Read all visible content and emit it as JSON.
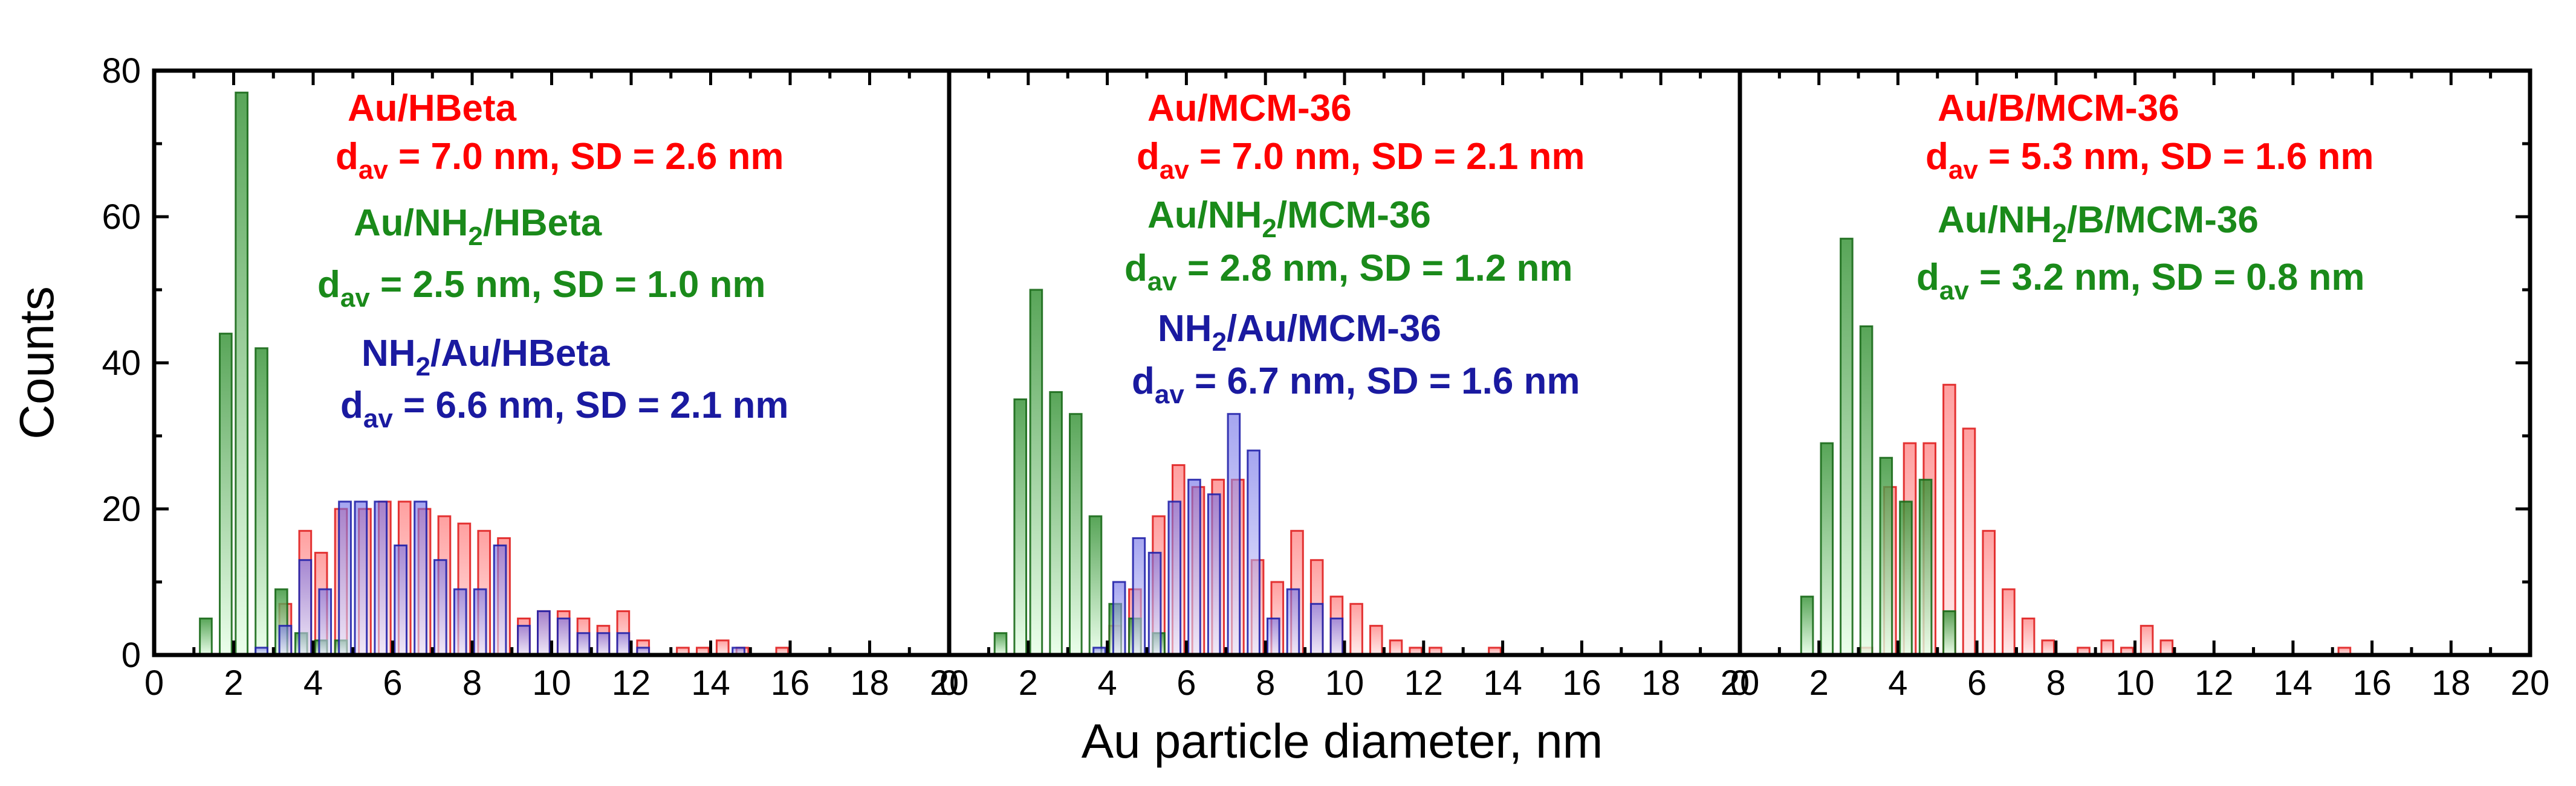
{
  "chart_data": {
    "type": "bar",
    "xlabel": "Au particle diameter, nm",
    "ylabel": "Counts",
    "xlim": [
      0,
      20
    ],
    "ylim": [
      0,
      80
    ],
    "x_ticks": [
      0,
      2,
      4,
      6,
      8,
      10,
      12,
      14,
      16,
      18,
      20
    ],
    "y_ticks": [
      0,
      20,
      40,
      60,
      80
    ],
    "bar_width": 0.3,
    "colors": {
      "red_fill": "#ff8080",
      "red_edge": "#e02020",
      "green_fill": "#2f8f2f",
      "green_edge": "#1a6a1a",
      "blue_fill": "#6a6ae6",
      "blue_edge": "#2222aa",
      "red_text": "#ff0000",
      "green_text": "#1a8a1a",
      "blue_text": "#1a1aa0"
    },
    "panels": [
      {
        "name": "panel-hbeta",
        "series": [
          {
            "color": "red",
            "x": [
              3.3,
              3.8,
              4.2,
              4.7,
              5.3,
              5.8,
              6.3,
              6.8,
              7.3,
              7.8,
              8.3,
              8.8,
              9.3,
              9.8,
              10.3,
              10.8,
              11.3,
              11.8,
              12.3,
              13.3,
              13.8,
              14.3,
              14.8,
              15.8
            ],
            "values": [
              7,
              17,
              14,
              20,
              20,
              21,
              21,
              20,
              19,
              18,
              17,
              16,
              5,
              6,
              6,
              5,
              4,
              6,
              2,
              1,
              1,
              2,
              1,
              1
            ]
          },
          {
            "color": "green",
            "x": [
              1.3,
              1.8,
              2.2,
              2.7,
              3.2,
              3.7,
              4.2,
              4.7
            ],
            "values": [
              5,
              44,
              77,
              42,
              9,
              3,
              2,
              2
            ]
          },
          {
            "color": "blue",
            "x": [
              2.7,
              3.3,
              3.8,
              4.3,
              4.8,
              5.2,
              5.7,
              6.2,
              6.7,
              7.2,
              7.7,
              8.2,
              8.7,
              9.3,
              9.8,
              10.3,
              10.8,
              11.3,
              11.8,
              12.3,
              14.7
            ],
            "values": [
              1,
              4,
              13,
              9,
              21,
              21,
              21,
              15,
              21,
              13,
              9,
              9,
              15,
              4,
              6,
              5,
              3,
              3,
              3,
              1,
              1
            ]
          }
        ],
        "labels": [
          {
            "color": "red",
            "lines": [
              [
                {
                  "t": "Au/HBeta"
                }
              ],
              [
                {
                  "t": "d"
                },
                {
                  "t": "av",
                  "sub": true
                },
                {
                  "t": " = 7.0 nm, SD = 2.6 nm"
                }
              ]
            ]
          },
          {
            "color": "green",
            "lines": [
              [
                {
                  "t": "Au/NH"
                },
                {
                  "t": "2",
                  "sub": true
                },
                {
                  "t": "/HBeta"
                }
              ],
              [
                {
                  "t": "d"
                },
                {
                  "t": "av",
                  "sub": true
                },
                {
                  "t": " = 2.5 nm, SD = 1.0 nm"
                }
              ]
            ]
          },
          {
            "color": "blue",
            "lines": [
              [
                {
                  "t": "NH"
                },
                {
                  "t": "2",
                  "sub": true
                },
                {
                  "t": "/Au/HBeta"
                }
              ],
              [
                {
                  "t": "d"
                },
                {
                  "t": "av",
                  "sub": true
                },
                {
                  "t": " = 6.6 nm, SD = 2.1 nm"
                }
              ]
            ]
          }
        ]
      },
      {
        "name": "panel-mcm36",
        "series": [
          {
            "color": "red",
            "x": [
              4.2,
              4.7,
              5.3,
              5.8,
              6.3,
              6.8,
              7.3,
              7.8,
              8.3,
              8.8,
              9.3,
              9.8,
              10.3,
              10.8,
              11.3,
              11.8,
              12.3,
              13.8
            ],
            "values": [
              4,
              9,
              19,
              26,
              23,
              24,
              24,
              13,
              10,
              17,
              13,
              8,
              7,
              4,
              2,
              1,
              1,
              1
            ]
          },
          {
            "color": "green",
            "x": [
              1.3,
              1.8,
              2.2,
              2.7,
              3.2,
              3.7,
              4.2,
              4.7,
              5.3
            ],
            "values": [
              3,
              35,
              50,
              36,
              33,
              19,
              7,
              5,
              3
            ]
          },
          {
            "color": "blue",
            "x": [
              3.8,
              4.3,
              4.8,
              5.2,
              5.7,
              6.2,
              6.7,
              7.2,
              7.7,
              8.2,
              8.7,
              9.3,
              9.8
            ],
            "values": [
              1,
              10,
              16,
              14,
              21,
              24,
              22,
              33,
              28,
              5,
              9,
              7,
              5
            ]
          }
        ],
        "labels": [
          {
            "color": "red",
            "lines": [
              [
                {
                  "t": "Au/MCM-36"
                }
              ],
              [
                {
                  "t": "d"
                },
                {
                  "t": "av",
                  "sub": true
                },
                {
                  "t": " = 7.0 nm, SD = 2.1 nm"
                }
              ]
            ]
          },
          {
            "color": "green",
            "lines": [
              [
                {
                  "t": "Au/NH"
                },
                {
                  "t": "2",
                  "sub": true
                },
                {
                  "t": "/MCM-36"
                }
              ],
              [
                {
                  "t": "d"
                },
                {
                  "t": "av",
                  "sub": true
                },
                {
                  "t": " = 2.8 nm, SD = 1.2 nm"
                }
              ]
            ]
          },
          {
            "color": "blue",
            "lines": [
              [
                {
                  "t": "NH"
                },
                {
                  "t": "2",
                  "sub": true
                },
                {
                  "t": "/Au/MCM-36"
                }
              ],
              [
                {
                  "t": "d"
                },
                {
                  "t": "av",
                  "sub": true
                },
                {
                  "t": " = 6.7 nm, SD = 1.6 nm"
                }
              ]
            ]
          }
        ]
      },
      {
        "name": "panel-b-mcm36",
        "series": [
          {
            "color": "red",
            "x": [
              3.2,
              3.8,
              4.3,
              4.8,
              5.3,
              5.8,
              6.3,
              6.8,
              7.3,
              7.8,
              8.7,
              9.3,
              9.8,
              10.3,
              10.8,
              15.3
            ],
            "values": [
              1,
              23,
              29,
              29,
              37,
              31,
              17,
              9,
              5,
              2,
              1,
              2,
              1,
              4,
              2,
              1
            ]
          },
          {
            "color": "green",
            "x": [
              1.7,
              2.2,
              2.7,
              3.2,
              3.7,
              4.2,
              4.7,
              5.3
            ],
            "values": [
              8,
              29,
              57,
              45,
              27,
              21,
              24,
              6
            ]
          }
        ],
        "labels": [
          {
            "color": "red",
            "lines": [
              [
                {
                  "t": "Au/B/MCM-36"
                }
              ],
              [
                {
                  "t": "d"
                },
                {
                  "t": "av",
                  "sub": true
                },
                {
                  "t": " = 5.3 nm, SD = 1.6 nm"
                }
              ]
            ]
          },
          {
            "color": "green",
            "lines": [
              [
                {
                  "t": "Au/NH"
                },
                {
                  "t": "2",
                  "sub": true
                },
                {
                  "t": "/B/MCM-36"
                }
              ],
              [
                {
                  "t": "d"
                },
                {
                  "t": "av",
                  "sub": true
                },
                {
                  "t": " = 3.2 nm, SD = 0.8 nm"
                }
              ]
            ]
          }
        ]
      }
    ]
  }
}
